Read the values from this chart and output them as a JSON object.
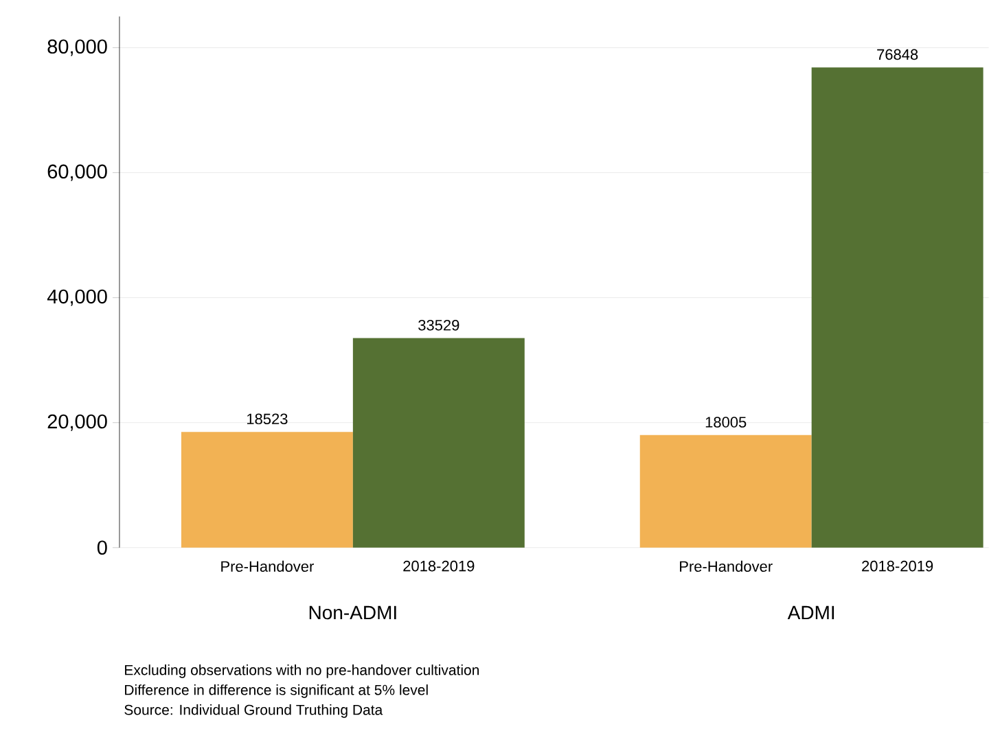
{
  "chart_data": {
    "type": "bar",
    "categories": [
      "Non-ADMI",
      "ADMI"
    ],
    "series": [
      {
        "name": "Pre-Handover",
        "color": "#f2b254",
        "values": [
          18523,
          18005
        ]
      },
      {
        "name": "2018-2019",
        "color": "#557133",
        "values": [
          33529,
          76848
        ]
      }
    ],
    "ylim": [
      0,
      85000
    ],
    "yticks": [
      0,
      {
        "value": 20000,
        "label": "20,000"
      },
      {
        "value": 40000,
        "label": "40,000"
      },
      {
        "value": 60000,
        "label": "60,000"
      },
      {
        "value": 80000,
        "label": "80,000"
      }
    ],
    "grid": "y",
    "data_labels": true,
    "annotations": [
      "Excluding observations with no pre-handover cultivation",
      "Difference in difference is significant at 5% level",
      "Source: Individual Ground Truthing Data"
    ]
  }
}
